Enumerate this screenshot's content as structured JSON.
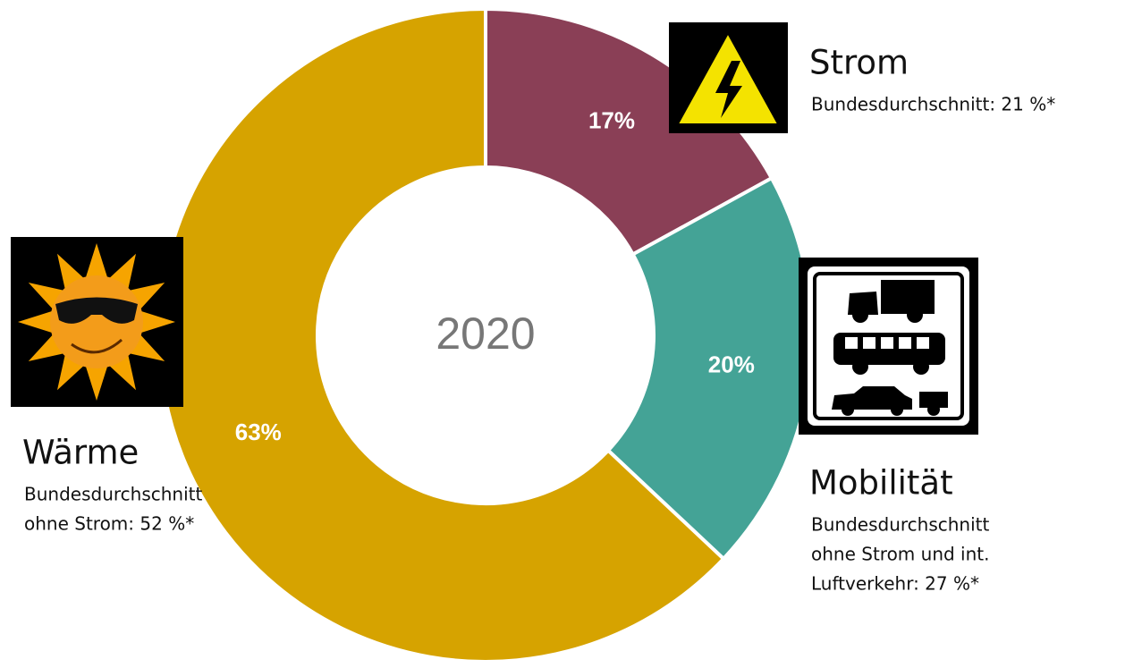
{
  "chart_data": {
    "type": "donut",
    "center_label": "2020",
    "categories": [
      "Strom",
      "Mobilität",
      "Wärme"
    ],
    "values": [
      17,
      20,
      63
    ],
    "value_labels": [
      "17%",
      "20%",
      "63%"
    ],
    "colors": [
      "#8a3f56",
      "#44a396",
      "#d6a300"
    ],
    "notes": [
      [
        "Bundesdurchschnitt: 21 %*"
      ],
      [
        "Bundesdurchschnitt",
        "ohne Strom und int.",
        "Luftverkehr: 27 %*"
      ],
      [
        "Bundesdurchschnitt",
        "ohne Strom: 52 %*"
      ]
    ]
  }
}
